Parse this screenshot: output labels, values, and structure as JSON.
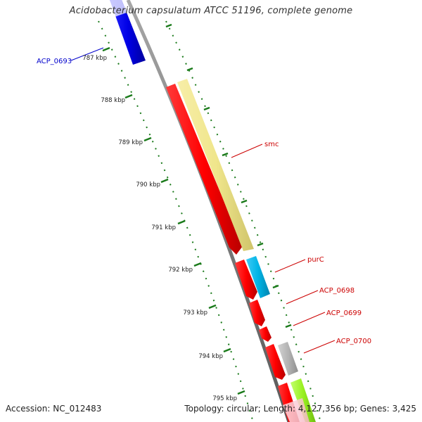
{
  "title": "Acidobacterium capsulatum ATCC 51196, complete genome",
  "accession": "Accession: NC_012483",
  "summary": "Topology: circular; Length: 4,127,356 bp; Genes: 3,425",
  "colors": {
    "backbone": "#808080",
    "ticks": "#1a7a1a",
    "forward_gene": "#0000e6",
    "reverse_gene": "#ff0000",
    "label_blue": "#0000cc",
    "label_red": "#cc0000"
  },
  "kbp_ticks": [
    "787 kbp",
    "788 kbp",
    "789 kbp",
    "790 kbp",
    "791 kbp",
    "792 kbp",
    "793 kbp",
    "794 kbp",
    "795 kbp"
  ],
  "genes": [
    {
      "label": "ACP_0693",
      "strand": "+",
      "color": "#0000e6"
    },
    {
      "label": "",
      "strand": "-",
      "color": "#ff0000"
    },
    {
      "label": "",
      "strand": "-",
      "color": "#ff0000"
    },
    {
      "label": "",
      "strand": "-",
      "color": "#ff0000"
    },
    {
      "label": "",
      "strand": "-",
      "color": "#ff0000"
    },
    {
      "label": "",
      "strand": "-",
      "color": "#ff0000"
    }
  ],
  "features": [
    {
      "label": "smc",
      "color": "#f0e68c"
    },
    {
      "label": "purC",
      "color": "#00b4e6"
    },
    {
      "label": "ACP_0698",
      "color": ""
    },
    {
      "label": "ACP_0699",
      "color": ""
    },
    {
      "label": "ACP_0700",
      "color": "#b4b4b4"
    },
    {
      "label": "",
      "color": "#98f020"
    }
  ]
}
